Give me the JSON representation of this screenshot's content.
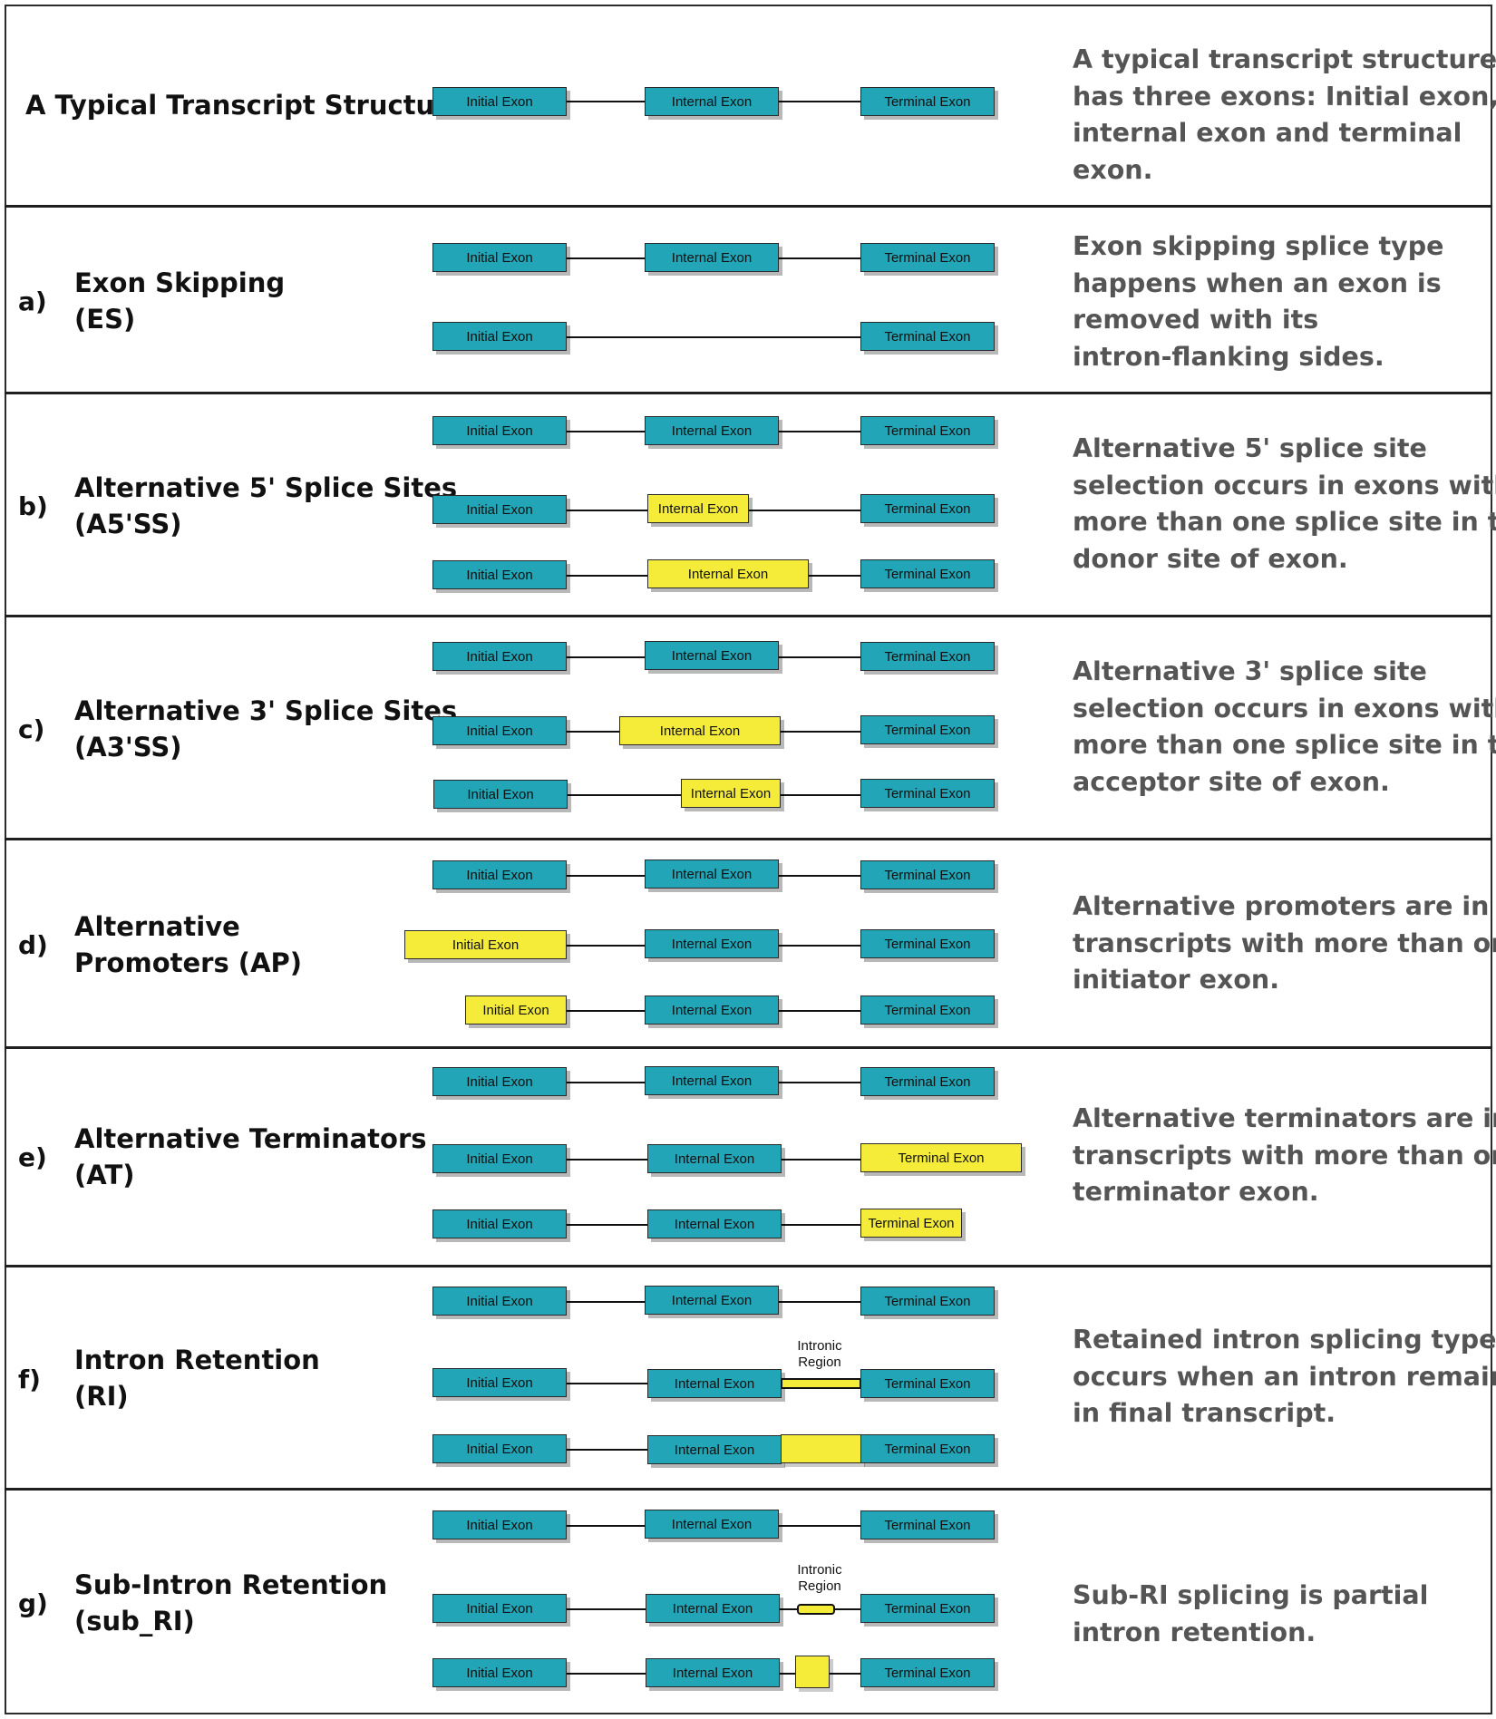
{
  "exon_labels": {
    "initial": "Initial Exon",
    "internal": "Internal Exon",
    "terminal": "Terminal Exon"
  },
  "intronic_region_label": [
    "Intronic",
    "Region"
  ],
  "colors": {
    "constitutive_exon": "#21a5b7",
    "alternative_exon": "#f5ec3a",
    "description_text": "#555555"
  },
  "sections": [
    {
      "letter": "",
      "title": [
        "A Typical Transcript Structure"
      ],
      "description": [
        "A typical transcript structure",
        "has three exons: Initial exon,",
        "internal exon and terminal",
        "exon."
      ]
    },
    {
      "letter": "a)",
      "title": [
        "Exon Skipping",
        "(ES)"
      ],
      "description": [
        "Exon skipping splice type",
        "happens when an exon is",
        "removed with its",
        "intron-flanking sides."
      ]
    },
    {
      "letter": "b)",
      "title": [
        "Alternative 5' Splice Sites",
        "(A5'SS)"
      ],
      "description": [
        "Alternative 5' splice site",
        "selection occurs in exons with",
        "more than one splice site in the",
        "donor site of exon."
      ]
    },
    {
      "letter": "c)",
      "title": [
        "Alternative 3' Splice Sites",
        "(A3'SS)"
      ],
      "description": [
        "Alternative 3' splice site",
        "selection occurs in exons with",
        "more than one splice site in the",
        "acceptor site of exon."
      ]
    },
    {
      "letter": "d)",
      "title": [
        "Alternative",
        "Promoters (AP)"
      ],
      "description": [
        "Alternative promoters are in",
        "transcripts with more than one",
        "initiator exon."
      ]
    },
    {
      "letter": "e)",
      "title": [
        "Alternative Terminators",
        "(AT)"
      ],
      "description": [
        "Alternative terminators are in",
        "transcripts with more than one",
        "terminator exon."
      ]
    },
    {
      "letter": "f)",
      "title": [
        "Intron Retention",
        "(RI)"
      ],
      "description": [
        "Retained intron splicing type",
        "occurs when an intron remains",
        "in final transcript."
      ]
    },
    {
      "letter": "g)",
      "title": [
        "Sub-Intron Retention",
        "(sub_RI)"
      ],
      "description": [
        "Sub-RI splicing is partial",
        "intron retention."
      ]
    }
  ]
}
